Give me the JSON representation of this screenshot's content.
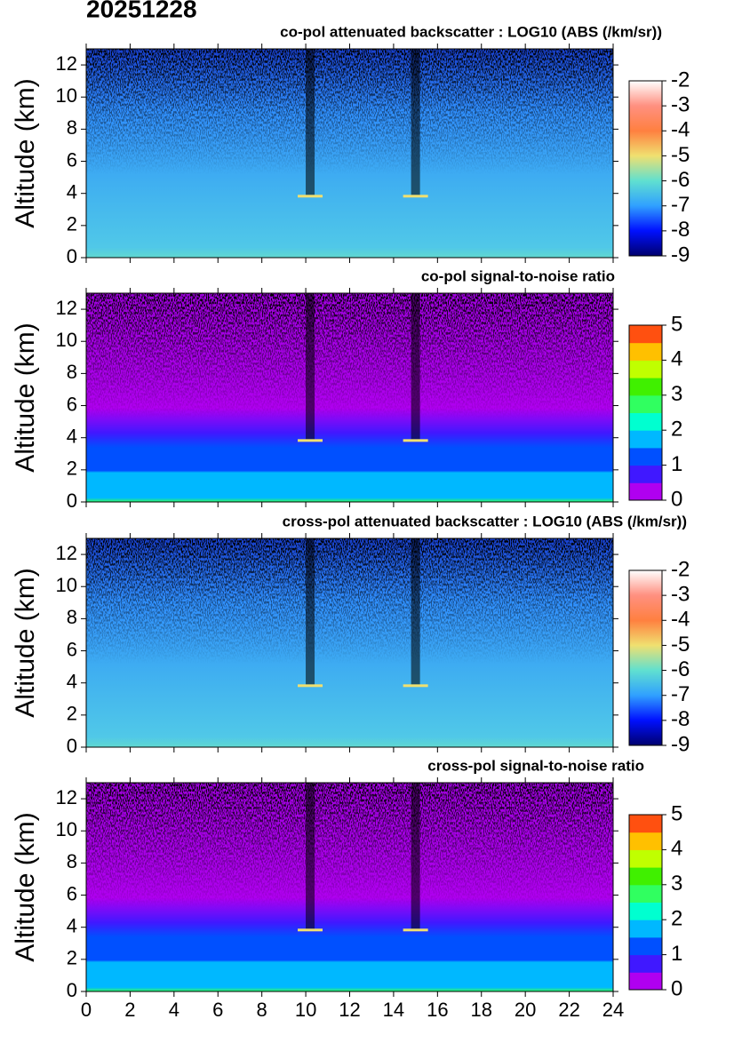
{
  "title": "20251228",
  "chart_data": [
    {
      "type": "heatmap",
      "title": "co-pol attenuated backscatter : LOG10 (ABS (/km/sr))",
      "ylabel": "Altitude (km)",
      "xlim": [
        0,
        24
      ],
      "xticks": [
        0,
        2,
        4,
        6,
        8,
        10,
        12,
        14,
        16,
        18,
        20,
        22,
        24
      ],
      "show_xtick_labels": false,
      "ylim": [
        0,
        13
      ],
      "yticks": [
        0,
        2,
        4,
        6,
        8,
        10,
        12
      ],
      "colorbar": {
        "lim": [
          -9,
          -2
        ],
        "ticks": [
          -9,
          -8,
          -7,
          -6,
          -5,
          -4,
          -3,
          -2
        ],
        "discrete": false,
        "colors": [
          "#00006e",
          "#0010ff",
          "#30a0ff",
          "#60e0d0",
          "#f0e070",
          "#ff8040",
          "#ff9080",
          "#ffffff"
        ]
      }
    },
    {
      "type": "heatmap",
      "title": "co-pol signal-to-noise ratio",
      "ylabel": "Altitude (km)",
      "xlim": [
        0,
        24
      ],
      "xticks": [
        0,
        2,
        4,
        6,
        8,
        10,
        12,
        14,
        16,
        18,
        20,
        22,
        24
      ],
      "show_xtick_labels": false,
      "ylim": [
        0,
        13
      ],
      "yticks": [
        0,
        2,
        4,
        6,
        8,
        10,
        12
      ],
      "colorbar": {
        "lim": [
          0,
          5
        ],
        "ticks": [
          0,
          1,
          2,
          3,
          4,
          5
        ],
        "discrete": true,
        "colors": [
          "#b000f0",
          "#4018ff",
          "#0050ff",
          "#00b8ff",
          "#00ffd0",
          "#30ff60",
          "#40f000",
          "#c0ff00",
          "#ffc000",
          "#ff5010"
        ]
      }
    },
    {
      "type": "heatmap",
      "title": "cross-pol attenuated backscatter : LOG10 (ABS (/km/sr))",
      "ylabel": "Altitude (km)",
      "xlim": [
        0,
        24
      ],
      "xticks": [
        0,
        2,
        4,
        6,
        8,
        10,
        12,
        14,
        16,
        18,
        20,
        22,
        24
      ],
      "show_xtick_labels": false,
      "ylim": [
        0,
        13
      ],
      "yticks": [
        0,
        2,
        4,
        6,
        8,
        10,
        12
      ],
      "colorbar": {
        "lim": [
          -9,
          -2
        ],
        "ticks": [
          -9,
          -8,
          -7,
          -6,
          -5,
          -4,
          -3,
          -2
        ],
        "discrete": false,
        "colors": [
          "#00006e",
          "#0010ff",
          "#30a0ff",
          "#60e0d0",
          "#f0e070",
          "#ff8040",
          "#ff9080",
          "#ffffff"
        ]
      }
    },
    {
      "type": "heatmap",
      "title": "cross-pol signal-to-noise ratio",
      "ylabel": "Altitude (km)",
      "xlim": [
        0,
        24
      ],
      "xticks": [
        0,
        2,
        4,
        6,
        8,
        10,
        12,
        14,
        16,
        18,
        20,
        22,
        24
      ],
      "show_xtick_labels": true,
      "ylim": [
        0,
        13
      ],
      "yticks": [
        0,
        2,
        4,
        6,
        8,
        10,
        12
      ],
      "colorbar": {
        "lim": [
          0,
          5
        ],
        "ticks": [
          0,
          1,
          2,
          3,
          4,
          5
        ],
        "discrete": true,
        "colors": [
          "#b000f0",
          "#4018ff",
          "#0050ff",
          "#00b8ff",
          "#00ffd0",
          "#30ff60",
          "#40f000",
          "#c0ff00",
          "#ffc000",
          "#ff5010"
        ]
      }
    }
  ]
}
